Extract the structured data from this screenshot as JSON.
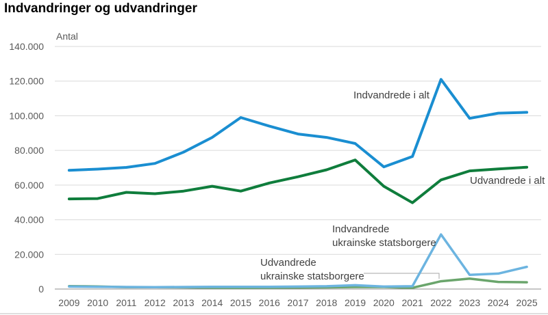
{
  "chart_data": {
    "type": "line",
    "title": "Indvandringer og udvandringer",
    "ylabel": "Antal",
    "ylim": [
      0,
      140000
    ],
    "yticks": [
      "0",
      "20.000",
      "40.000",
      "60.000",
      "80.000",
      "100.000",
      "120.000",
      "140.000"
    ],
    "ytick_values": [
      0,
      20000,
      40000,
      60000,
      80000,
      100000,
      120000,
      140000
    ],
    "x": [
      "2009",
      "2010",
      "2011",
      "2012",
      "2013",
      "2014",
      "2015",
      "2016",
      "2017",
      "2018",
      "2019",
      "2020",
      "2021",
      "2022",
      "2023",
      "2024",
      "2025"
    ],
    "grid": true,
    "legend": "inline labels",
    "series": [
      {
        "name": "Indvandrede i alt",
        "color": "#1a8ed1",
        "values": [
          68500,
          69200,
          70200,
          72500,
          79000,
          87500,
          99000,
          94000,
          89500,
          87500,
          84000,
          70500,
          76500,
          121000,
          98500,
          101500,
          102000
        ]
      },
      {
        "name": "Udvandrede i alt",
        "color": "#0f7d3c",
        "values": [
          52000,
          52200,
          55800,
          55000,
          56500,
          59300,
          56500,
          61200,
          64800,
          68800,
          74500,
          59300,
          49800,
          63000,
          68200,
          69300,
          70300
        ]
      },
      {
        "name": "Indvandrede ukrainske statsborgere",
        "color": "#6cb4e0",
        "values": [
          1400,
          1300,
          1200,
          1100,
          1200,
          1300,
          1300,
          1300,
          1400,
          1600,
          2200,
          1400,
          1600,
          31500,
          8200,
          8900,
          12800
        ]
      },
      {
        "name": "Udvandrede ukrainske statsborgere",
        "color": "#6aa56c",
        "values": [
          1700,
          1500,
          1100,
          1100,
          1000,
          800,
          700,
          800,
          900,
          1000,
          1200,
          1200,
          700,
          4500,
          6000,
          4100,
          3900
        ]
      }
    ],
    "annotations": [
      {
        "series": 0,
        "lines": [
          "Indvandrede i alt"
        ]
      },
      {
        "series": 1,
        "lines": [
          "Udvandrede i alt"
        ]
      },
      {
        "series": 2,
        "lines": [
          "Indvandrede",
          "ukrainske statsborgere"
        ]
      },
      {
        "series": 3,
        "lines": [
          "Udvandrede",
          "ukrainske statsborgere"
        ]
      }
    ]
  }
}
